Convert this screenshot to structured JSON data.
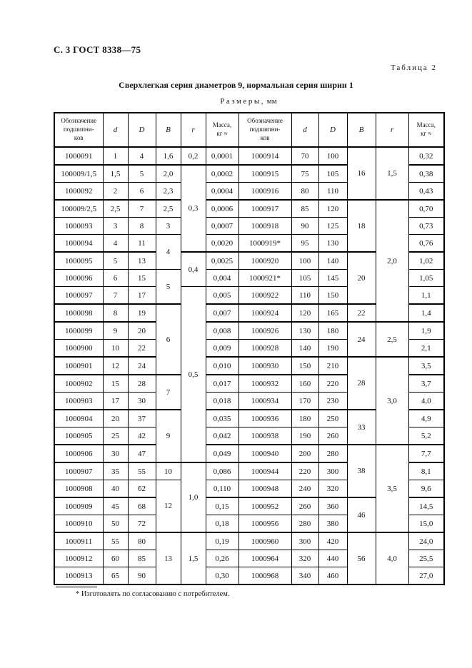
{
  "page": {
    "header_left": "С. 3 ГОСТ 8338—75",
    "table_label": "Таблица 2",
    "title": "Сверхлегкая серия диаметров 9, нормальная серия ширин 1",
    "subtitle_spaced": "Размеры,",
    "subtitle_unit": "мм",
    "footnote": "* Изготовлять по согласованию с потребителем."
  },
  "table": {
    "header": {
      "designation_lines": "Обозначение\nподшипни-\nков",
      "d": "d",
      "D": "D",
      "B": "B",
      "r": "r",
      "mass_lines": "Масса,\nкг ≈"
    },
    "left": {
      "rows": [
        [
          "1000091",
          "1",
          "4"
        ],
        [
          "100009/1,5",
          "1,5",
          "5"
        ],
        [
          "1000092",
          "2",
          "6"
        ],
        [
          "100009/2,5",
          "2,5",
          "7"
        ],
        [
          "1000093",
          "3",
          "8"
        ],
        [
          "1000094",
          "4",
          "11"
        ],
        [
          "1000095",
          "5",
          "13"
        ],
        [
          "1000096",
          "6",
          "15"
        ],
        [
          "1000097",
          "7",
          "17"
        ],
        [
          "1000098",
          "8",
          "19"
        ],
        [
          "1000099",
          "9",
          "20"
        ],
        [
          "1000900",
          "10",
          "22"
        ],
        [
          "1000901",
          "12",
          "24"
        ],
        [
          "1000902",
          "15",
          "28"
        ],
        [
          "1000903",
          "17",
          "30"
        ],
        [
          "1000904",
          "20",
          "37"
        ],
        [
          "1000905",
          "25",
          "42"
        ],
        [
          "1000906",
          "30",
          "47"
        ],
        [
          "1000907",
          "35",
          "55"
        ],
        [
          "1000908",
          "40",
          "62"
        ],
        [
          "1000909",
          "45",
          "68"
        ],
        [
          "1000910",
          "50",
          "72"
        ],
        [
          "1000911",
          "55",
          "80"
        ],
        [
          "1000912",
          "60",
          "85"
        ],
        [
          "1000913",
          "65",
          "90"
        ]
      ],
      "b_groups": [
        {
          "v": "1,6",
          "n": 1
        },
        {
          "v": "2,0",
          "n": 1
        },
        {
          "v": "2,3",
          "n": 1
        },
        {
          "v": "2,5",
          "n": 1
        },
        {
          "v": "3",
          "n": 1
        },
        {
          "v": "4",
          "n": 2
        },
        {
          "v": "5",
          "n": 2
        },
        {
          "v": "6",
          "n": 4
        },
        {
          "v": "7",
          "n": 2
        },
        {
          "v": "9",
          "n": 3
        },
        {
          "v": "10",
          "n": 1
        },
        {
          "v": "12",
          "n": 3
        },
        {
          "v": "13",
          "n": 3
        }
      ],
      "r_groups": [
        {
          "v": "0,2",
          "n": 1
        },
        {
          "v": "0,3",
          "n": 5
        },
        {
          "v": "0,4",
          "n": 2
        },
        {
          "v": "0,5",
          "n": 10
        },
        {
          "v": "1,0",
          "n": 4
        },
        {
          "v": "1,5",
          "n": 3
        }
      ],
      "mass": [
        "0,0001",
        "0,0002",
        "0,0004",
        "0,0006",
        "0,0007",
        "0,0020",
        "0,0025",
        "0,004",
        "0,005",
        "0,007",
        "0,008",
        "0,009",
        "0,010",
        "0,017",
        "0,018",
        "0,035",
        "0,042",
        "0,049",
        "0,086",
        "0,110",
        "0,15",
        "0,18",
        "0,19",
        "0,26",
        "0,30"
      ]
    },
    "right": {
      "rows": [
        [
          "1000914",
          "70",
          "100"
        ],
        [
          "1000915",
          "75",
          "105"
        ],
        [
          "1000916",
          "80",
          "110"
        ],
        [
          "1000917",
          "85",
          "120"
        ],
        [
          "1000918",
          "90",
          "125"
        ],
        [
          "1000919*",
          "95",
          "130"
        ],
        [
          "1000920",
          "100",
          "140"
        ],
        [
          "1000921*",
          "105",
          "145"
        ],
        [
          "1000922",
          "110",
          "150"
        ],
        [
          "1000924",
          "120",
          "165"
        ],
        [
          "1000926",
          "130",
          "180"
        ],
        [
          "1000928",
          "140",
          "190"
        ],
        [
          "1000930",
          "150",
          "210"
        ],
        [
          "1000932",
          "160",
          "220"
        ],
        [
          "1000934",
          "170",
          "230"
        ],
        [
          "1000936",
          "180",
          "250"
        ],
        [
          "1000938",
          "190",
          "260"
        ],
        [
          "1000940",
          "200",
          "280"
        ],
        [
          "1000944",
          "220",
          "300"
        ],
        [
          "1000948",
          "240",
          "320"
        ],
        [
          "1000952",
          "260",
          "360"
        ],
        [
          "1000956",
          "280",
          "380"
        ],
        [
          "1000960",
          "300",
          "420"
        ],
        [
          "1000964",
          "320",
          "440"
        ],
        [
          "1000968",
          "340",
          "460"
        ]
      ],
      "b_groups": [
        {
          "v": "16",
          "n": 3
        },
        {
          "v": "18",
          "n": 3
        },
        {
          "v": "20",
          "n": 3
        },
        {
          "v": "22",
          "n": 1
        },
        {
          "v": "24",
          "n": 2
        },
        {
          "v": "28",
          "n": 3
        },
        {
          "v": "33",
          "n": 2
        },
        {
          "v": "38",
          "n": 3
        },
        {
          "v": "46",
          "n": 2
        },
        {
          "v": "56",
          "n": 3
        }
      ],
      "r_groups": [
        {
          "v": "1,5",
          "n": 3
        },
        {
          "v": "2,0",
          "n": 7
        },
        {
          "v": "2,5",
          "n": 2
        },
        {
          "v": "3,0",
          "n": 5
        },
        {
          "v": "3,5",
          "n": 5
        },
        {
          "v": "4,0",
          "n": 3
        }
      ],
      "mass": [
        "0,32",
        "0,38",
        "0,43",
        "0,70",
        "0,73",
        "0,76",
        "1,02",
        "1,05",
        "1,1",
        "1,4",
        "1,9",
        "2,1",
        "3,5",
        "3,7",
        "4,0",
        "4,9",
        "5,2",
        "7,7",
        "8,1",
        "9,6",
        "14,5",
        "15,0",
        "24,0",
        "25,5",
        "27,0"
      ]
    }
  }
}
